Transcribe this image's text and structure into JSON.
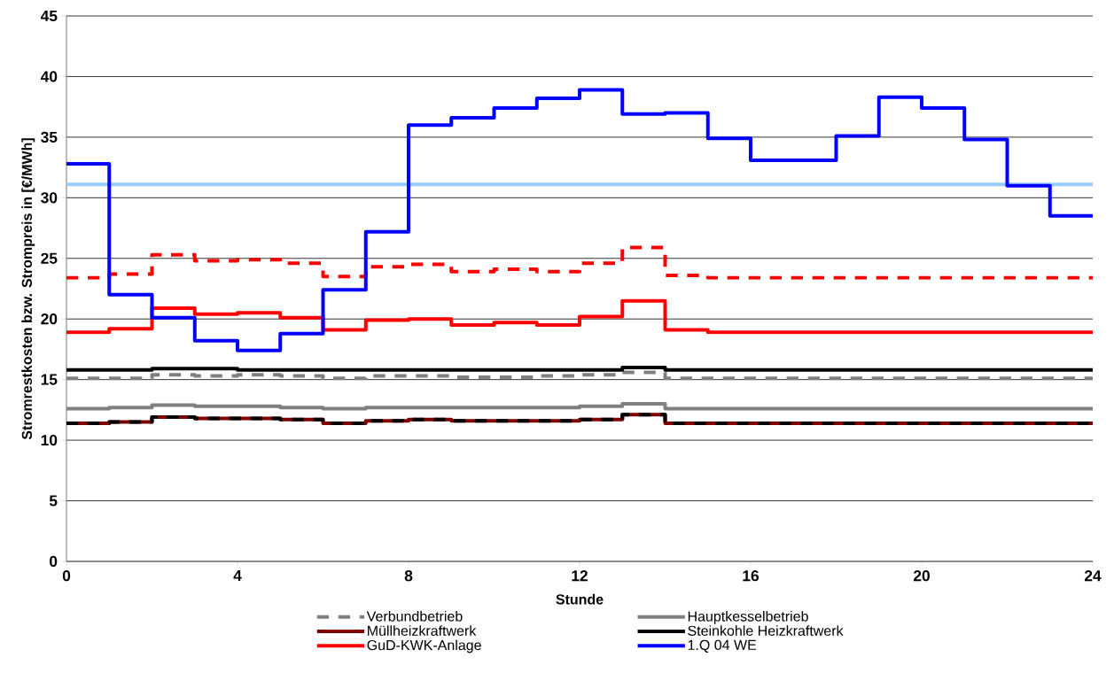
{
  "chart_data": {
    "type": "step",
    "xlabel": "Stunde",
    "ylabel": "Stromrestkosten bzw. Strompreis in [€/MWh]",
    "xlim": [
      0,
      24
    ],
    "xticks": [
      0,
      4,
      8,
      12,
      16,
      20,
      24
    ],
    "ylim": [
      0,
      45
    ],
    "yticks": [
      0,
      5,
      10,
      15,
      20,
      25,
      30,
      35,
      40,
      45
    ],
    "grid": "y",
    "legend": "bottom",
    "line_style": "solid",
    "marker": "none",
    "x": [
      0,
      1,
      2,
      3,
      4,
      5,
      6,
      7,
      8,
      9,
      10,
      11,
      12,
      13,
      14,
      15,
      16,
      17,
      18,
      19,
      20,
      21,
      22,
      23,
      24
    ],
    "series": [
      {
        "type": "line",
        "color": "#99ccff",
        "x": [
          0,
          24
        ],
        "values": [
          31.1,
          31.1
        ]
      },
      {
        "color": "#ff0000",
        "line_style": "dashed",
        "values": [
          23.4,
          23.7,
          25.3,
          24.8,
          24.9,
          24.6,
          23.5,
          24.3,
          24.5,
          23.9,
          24.1,
          23.9,
          24.6,
          25.9,
          23.6,
          23.4,
          23.4,
          23.4,
          23.4,
          23.4,
          23.4,
          23.4,
          23.4,
          23.4,
          23.4
        ]
      },
      {
        "name": "Verbundbetrieb",
        "color": "#808080",
        "line_style": "dashed",
        "values": [
          15.1,
          15.1,
          15.4,
          15.3,
          15.4,
          15.3,
          15.1,
          15.3,
          15.3,
          15.2,
          15.2,
          15.3,
          15.4,
          15.6,
          15.1,
          15.1,
          15.1,
          15.1,
          15.1,
          15.1,
          15.1,
          15.1,
          15.1,
          15.1,
          15.1
        ]
      },
      {
        "name": "Hauptkesselbetrieb",
        "color": "#808080",
        "values": [
          12.6,
          12.7,
          12.9,
          12.8,
          12.8,
          12.7,
          12.6,
          12.7,
          12.7,
          12.7,
          12.7,
          12.7,
          12.8,
          13.0,
          12.6,
          12.6,
          12.6,
          12.6,
          12.6,
          12.6,
          12.6,
          12.6,
          12.6,
          12.6,
          12.6
        ]
      },
      {
        "name": "Müllheizkraftwerk",
        "color": "#800000",
        "values": [
          11.4,
          11.5,
          11.9,
          11.8,
          11.8,
          11.7,
          11.4,
          11.6,
          11.7,
          11.6,
          11.6,
          11.6,
          11.7,
          12.1,
          11.4,
          11.4,
          11.4,
          11.4,
          11.4,
          11.4,
          11.4,
          11.4,
          11.4,
          11.4,
          11.4
        ]
      },
      {
        "name": "Steinkohle Heizkraftwerk",
        "color": "#000000",
        "values": [
          15.8,
          15.8,
          15.9,
          15.9,
          15.8,
          15.8,
          15.8,
          15.8,
          15.8,
          15.8,
          15.8,
          15.8,
          15.8,
          16.0,
          15.8,
          15.8,
          15.8,
          15.8,
          15.8,
          15.8,
          15.8,
          15.8,
          15.8,
          15.8,
          15.8
        ]
      },
      {
        "name": "GuD-KWK-Anlage",
        "color": "#ff0000",
        "values": [
          18.9,
          19.2,
          20.9,
          20.4,
          20.5,
          20.1,
          19.1,
          19.9,
          20.0,
          19.5,
          19.7,
          19.5,
          20.2,
          21.5,
          19.1,
          18.9,
          18.9,
          18.9,
          18.9,
          18.9,
          18.9,
          18.9,
          18.9,
          18.9,
          18.9
        ]
      },
      {
        "name": "1.Q 04 WE",
        "color": "#0000ff",
        "values": [
          32.8,
          22.0,
          20.1,
          18.2,
          17.4,
          18.8,
          22.4,
          27.2,
          36.0,
          36.6,
          37.4,
          38.2,
          38.9,
          36.9,
          37.0,
          34.9,
          33.1,
          33.1,
          35.1,
          38.3,
          37.4,
          34.8,
          31.0,
          28.5,
          28.5
        ]
      },
      {
        "color": "#000000",
        "line_style": "dashed",
        "values": [
          11.4,
          11.5,
          11.9,
          11.8,
          11.8,
          11.7,
          11.4,
          11.6,
          11.7,
          11.6,
          11.6,
          11.6,
          11.7,
          12.1,
          11.4,
          11.4,
          11.4,
          11.4,
          11.4,
          11.4,
          11.4,
          11.4,
          11.4,
          11.4,
          11.4
        ]
      }
    ]
  }
}
